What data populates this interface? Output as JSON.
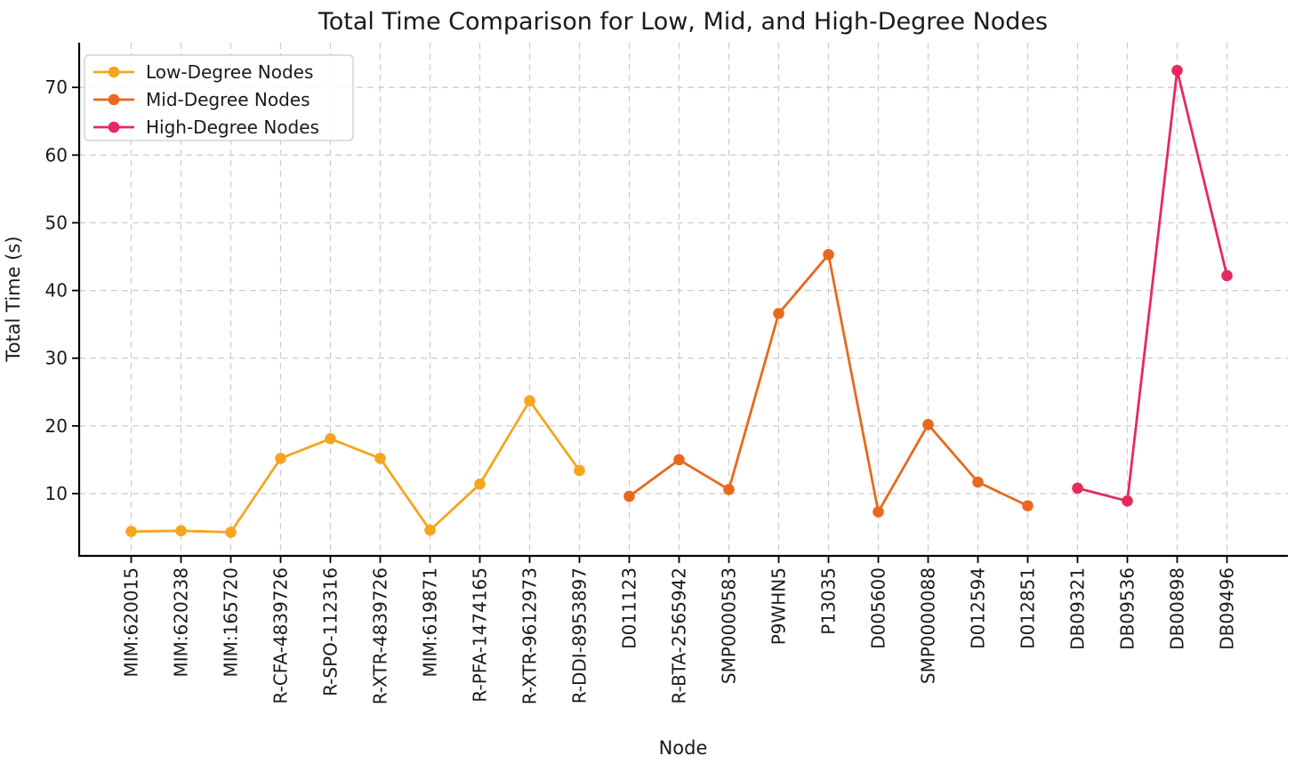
{
  "chart_data": {
    "type": "line",
    "title": "Total Time Comparison for Low, Mid, and High-Degree Nodes",
    "xlabel": "Node",
    "ylabel": "Total Time (s)",
    "categories": [
      "MIM:620015",
      "MIM:620238",
      "MIM:165720",
      "R-CFA-4839726",
      "R-SPO-112316",
      "R-XTR-4839726",
      "MIM:619871",
      "R-PFA-1474165",
      "R-XTR-9612973",
      "R-DDI-8953897",
      "D011123",
      "R-BTA-2565942",
      "SMP0000583",
      "P9WHN5",
      "P13035",
      "D005600",
      "SMP0000088",
      "D012594",
      "D012851",
      "DB09321",
      "DB09536",
      "DB00898",
      "DB09496"
    ],
    "series": [
      {
        "name": "Low-Degree Nodes",
        "color": "#F7A51E",
        "start_index": 0,
        "values": [
          4.4,
          4.5,
          4.3,
          15.2,
          18.1,
          15.2,
          4.6,
          11.4,
          23.7,
          13.4
        ]
      },
      {
        "name": "Mid-Degree Nodes",
        "color": "#E8691E",
        "start_index": 10,
        "values": [
          9.6,
          15.0,
          10.6,
          36.6,
          45.3,
          7.3,
          20.2,
          11.7,
          8.2
        ]
      },
      {
        "name": "High-Degree Nodes",
        "color": "#E52A5E",
        "start_index": 19,
        "values": [
          10.8,
          8.9,
          72.5,
          42.2
        ]
      }
    ],
    "yticks": [
      10,
      20,
      30,
      40,
      50,
      60,
      70
    ],
    "ylim": [
      0.8,
      76.6
    ],
    "grid": true,
    "grid_style": "dashed",
    "legend_position": "upper left",
    "colors": {
      "background": "#ffffff",
      "grid": "#cccccc",
      "text": "#1a1a1a",
      "spine": "#000000",
      "legend_border": "#cccccc",
      "legend_background": "#ffffff"
    }
  }
}
